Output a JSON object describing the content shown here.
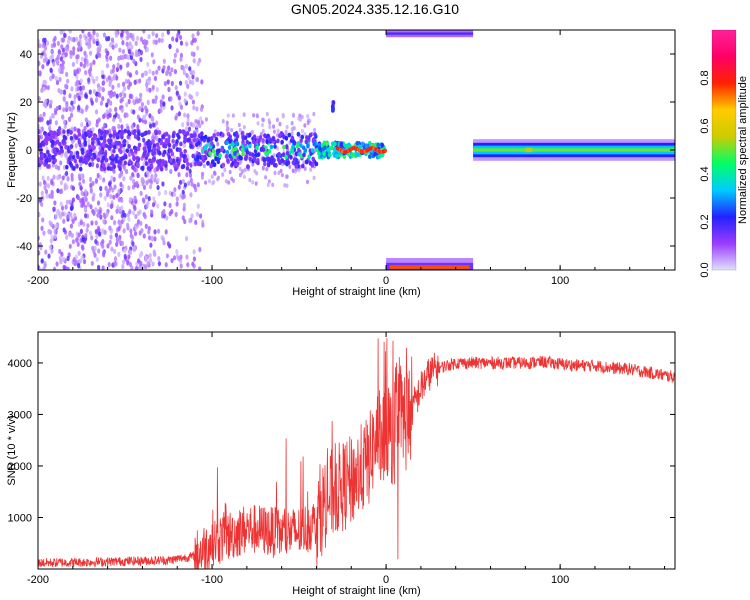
{
  "figure": {
    "title": "GN05.2024.335.12.16.G10"
  },
  "chart_data": [
    {
      "type": "heatmap",
      "xlabel": "Height of straight line (km)",
      "ylabel": "Frequency (Hz)",
      "xlim": [
        -200,
        166
      ],
      "ylim": [
        -50,
        50
      ],
      "xticks": [
        -200,
        -100,
        0,
        100
      ],
      "yticks": [
        -40,
        -20,
        0,
        20,
        40
      ],
      "grid": false,
      "colorbar": {
        "label": "Normalized spectral amplitude",
        "range": [
          0,
          1
        ],
        "ticks": [
          "0.0",
          "0.2",
          "0.4",
          "0.6",
          "0.8"
        ],
        "colors": [
          "#e0e0ff",
          "#9a3cff",
          "#2222ff",
          "#00ccff",
          "#00ff66",
          "#cccc00",
          "#ffcc00",
          "#ff2200",
          "#ff0066",
          "#ff2299"
        ]
      },
      "features": [
        {
          "name": "noise band",
          "x": [
            -200,
            -110
          ],
          "freq": [
            -50,
            50
          ],
          "level": 0.15
        },
        {
          "name": "main trace",
          "x": [
            -110,
            0
          ],
          "freq": [
            -4,
            4
          ],
          "level_peak": 0.45
        },
        {
          "name": "spike",
          "x": [
            -35,
            -30
          ],
          "freq": [
            16,
            20
          ],
          "level": 0.2
        },
        {
          "name": "wrap top",
          "x": [
            0,
            50
          ],
          "freq": [
            47,
            50
          ],
          "level": 0.4
        },
        {
          "name": "wrap bottom",
          "x": [
            0,
            50
          ],
          "freq": [
            -50,
            -46
          ],
          "level": 0.8
        },
        {
          "name": "line",
          "x": [
            50,
            166
          ],
          "freq": [
            -3,
            3
          ],
          "level": 0.5
        }
      ]
    },
    {
      "type": "line",
      "xlabel": "Height of straight line (km)",
      "ylabel": "SNR (10 * v/v)",
      "xlim": [
        -200,
        166
      ],
      "ylim": [
        0,
        4600
      ],
      "xticks": [
        -200,
        -100,
        0,
        100
      ],
      "yticks": [
        1000,
        2000,
        3000,
        4000
      ],
      "grid": false,
      "color": "#ee3333",
      "series": [
        {
          "x": [
            -200,
            -175,
            -150,
            -125,
            -110,
            -100,
            -90,
            -80,
            -70,
            -60,
            -50,
            -40,
            -35,
            -30,
            -25,
            -20,
            -15,
            -10,
            -5,
            0,
            5,
            10,
            15,
            20,
            25,
            30,
            40,
            50,
            60,
            70,
            80,
            90,
            100,
            110,
            120,
            130,
            140,
            150,
            166
          ],
          "values": [
            120,
            130,
            150,
            170,
            250,
            520,
            650,
            780,
            750,
            680,
            720,
            900,
            1300,
            1500,
            1600,
            1700,
            1900,
            2100,
            2600,
            2600,
            2700,
            2900,
            3100,
            3500,
            3800,
            3900,
            4000,
            4000,
            4000,
            4000,
            4000,
            4020,
            3980,
            3950,
            3950,
            3900,
            3880,
            3820,
            3720
          ]
        }
      ]
    }
  ]
}
